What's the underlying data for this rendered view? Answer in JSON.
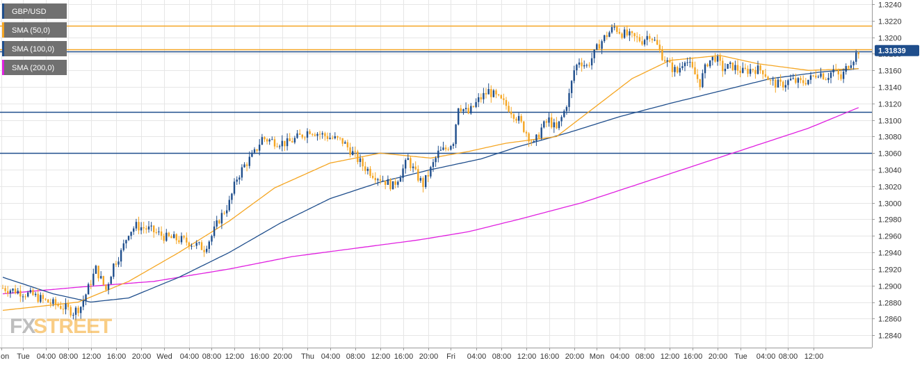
{
  "chart_data": {
    "type": "candlestick",
    "symbol": "GBP/USD",
    "y_range": [
      1.2825,
      1.3245
    ],
    "grid": true,
    "y_ticks": [
      1.284,
      1.286,
      1.288,
      1.29,
      1.292,
      1.294,
      1.296,
      1.298,
      1.3,
      1.302,
      1.304,
      1.306,
      1.308,
      1.31,
      1.312,
      1.314,
      1.316,
      1.318,
      1.32,
      1.322,
      1.324
    ],
    "x_ticks": [
      "Mon",
      "Tue",
      "04:00",
      "08:00",
      "12:00",
      "16:00",
      "20:00",
      "Wed",
      "04:00",
      "08:00",
      "12:00",
      "16:00",
      "20:00",
      "Thu",
      "04:00",
      "08:00",
      "12:00",
      "16:00",
      "20:00",
      "Fri",
      "04:00",
      "08:00",
      "12:00",
      "16:00",
      "20:00",
      "Mon",
      "04:00",
      "08:00",
      "12:00",
      "16:00",
      "20:00",
      "Tue",
      "04:00",
      "08:00",
      "12:00"
    ],
    "bar_interval": "1h",
    "last_price": "1.31839",
    "legend": [
      {
        "label": "GBP/USD",
        "color": "#1f4e8c"
      },
      {
        "label": "SMA (50,0)",
        "color": "#f5a623"
      },
      {
        "label": "SMA (100,0)",
        "color": "#1f4e8c"
      },
      {
        "label": "SMA (200,0)",
        "color": "#e020e0"
      }
    ],
    "horizontal_levels": [
      {
        "price": 1.3214,
        "color": "#f5a623"
      },
      {
        "price": 1.3185,
        "color": "#f5a623"
      },
      {
        "price": 1.3183,
        "color": "#1f4e8c"
      },
      {
        "price": 1.311,
        "color": "#1f4e8c"
      },
      {
        "price": 1.306,
        "color": "#1f4e8c"
      }
    ],
    "price_path": [
      [
        0,
        1.2897
      ],
      [
        6,
        1.2893
      ],
      [
        12,
        1.2888
      ],
      [
        18,
        1.288
      ],
      [
        24,
        1.2874
      ],
      [
        28,
        1.2868
      ],
      [
        31,
        1.2875
      ],
      [
        34,
        1.2897
      ],
      [
        37,
        1.292
      ],
      [
        41,
        1.2895
      ],
      [
        44,
        1.2925
      ],
      [
        47,
        1.294
      ],
      [
        50,
        1.2965
      ],
      [
        53,
        1.2972
      ],
      [
        58,
        1.2968
      ],
      [
        65,
        1.2958
      ],
      [
        71,
        1.2955
      ],
      [
        76,
        1.295
      ],
      [
        80,
        1.2945
      ],
      [
        83,
        1.296
      ],
      [
        86,
        1.298
      ],
      [
        90,
        1.3
      ],
      [
        93,
        1.303
      ],
      [
        96,
        1.3045
      ],
      [
        100,
        1.306
      ],
      [
        103,
        1.3078
      ],
      [
        108,
        1.3074
      ],
      [
        113,
        1.3072
      ],
      [
        118,
        1.308
      ],
      [
        122,
        1.3088
      ],
      [
        126,
        1.3083
      ],
      [
        131,
        1.3078
      ],
      [
        135,
        1.3074
      ],
      [
        139,
        1.306
      ],
      [
        143,
        1.3045
      ],
      [
        147,
        1.3035
      ],
      [
        151,
        1.3028
      ],
      [
        155,
        1.302
      ],
      [
        158,
        1.3035
      ],
      [
        161,
        1.3052
      ],
      [
        164,
        1.3035
      ],
      [
        167,
        1.3022
      ],
      [
        170,
        1.304
      ],
      [
        173,
        1.306
      ],
      [
        176,
        1.3065
      ],
      [
        179,
        1.3075
      ],
      [
        181,
        1.3118
      ],
      [
        185,
        1.3108
      ],
      [
        189,
        1.3124
      ],
      [
        193,
        1.3135
      ],
      [
        197,
        1.3125
      ],
      [
        201,
        1.3115
      ],
      [
        205,
        1.31
      ],
      [
        208,
        1.3085
      ],
      [
        211,
        1.307
      ],
      [
        214,
        1.309
      ],
      [
        217,
        1.31
      ],
      [
        220,
        1.3088
      ],
      [
        223,
        1.311
      ],
      [
        225,
        1.313
      ],
      [
        227,
        1.316
      ],
      [
        229,
        1.3172
      ],
      [
        232,
        1.3165
      ],
      [
        235,
        1.318
      ],
      [
        237,
        1.3192
      ],
      [
        240,
        1.3203
      ],
      [
        243,
        1.3212
      ],
      [
        246,
        1.3205
      ],
      [
        250,
        1.32
      ],
      [
        254,
        1.3196
      ],
      [
        257,
        1.3204
      ],
      [
        259,
        1.3195
      ],
      [
        262,
        1.3178
      ],
      [
        265,
        1.3165
      ],
      [
        268,
        1.3158
      ],
      [
        271,
        1.3175
      ],
      [
        274,
        1.316
      ],
      [
        277,
        1.3145
      ],
      [
        280,
        1.317
      ],
      [
        283,
        1.3176
      ],
      [
        286,
        1.3162
      ],
      [
        290,
        1.3165
      ],
      [
        294,
        1.3158
      ],
      [
        298,
        1.3162
      ],
      [
        302,
        1.316
      ],
      [
        305,
        1.3146
      ],
      [
        309,
        1.3142
      ],
      [
        313,
        1.3148
      ],
      [
        317,
        1.3145
      ],
      [
        321,
        1.315
      ],
      [
        324,
        1.3158
      ],
      [
        327,
        1.3152
      ],
      [
        330,
        1.316
      ],
      [
        333,
        1.315
      ],
      [
        336,
        1.3168
      ],
      [
        338,
        1.3175
      ],
      [
        340,
        1.3184
      ]
    ],
    "sma50": [
      [
        0,
        1.287
      ],
      [
        30,
        1.288
      ],
      [
        50,
        1.2905
      ],
      [
        70,
        1.294
      ],
      [
        90,
        1.2978
      ],
      [
        108,
        1.3018
      ],
      [
        130,
        1.3048
      ],
      [
        150,
        1.306
      ],
      [
        170,
        1.3054
      ],
      [
        185,
        1.3062
      ],
      [
        200,
        1.3072
      ],
      [
        220,
        1.308
      ],
      [
        235,
        1.3115
      ],
      [
        250,
        1.315
      ],
      [
        265,
        1.3172
      ],
      [
        285,
        1.3178
      ],
      [
        300,
        1.3168
      ],
      [
        320,
        1.316
      ],
      [
        340,
        1.3162
      ]
    ],
    "sma100": [
      [
        0,
        1.291
      ],
      [
        20,
        1.289
      ],
      [
        35,
        1.288
      ],
      [
        50,
        1.2885
      ],
      [
        70,
        1.291
      ],
      [
        90,
        1.294
      ],
      [
        110,
        1.2975
      ],
      [
        130,
        1.3005
      ],
      [
        150,
        1.3025
      ],
      [
        170,
        1.304
      ],
      [
        190,
        1.3053
      ],
      [
        205,
        1.3068
      ],
      [
        225,
        1.3085
      ],
      [
        245,
        1.3104
      ],
      [
        265,
        1.312
      ],
      [
        285,
        1.3135
      ],
      [
        305,
        1.315
      ],
      [
        325,
        1.3158
      ],
      [
        340,
        1.3162
      ]
    ],
    "sma200": [
      [
        0,
        1.289
      ],
      [
        30,
        1.2898
      ],
      [
        60,
        1.2905
      ],
      [
        90,
        1.292
      ],
      [
        115,
        1.2935
      ],
      [
        140,
        1.2945
      ],
      [
        165,
        1.2955
      ],
      [
        185,
        1.2965
      ],
      [
        205,
        1.298
      ],
      [
        230,
        1.3
      ],
      [
        255,
        1.3025
      ],
      [
        280,
        1.305
      ],
      [
        300,
        1.307
      ],
      [
        320,
        1.309
      ],
      [
        340,
        1.3115
      ]
    ]
  },
  "watermark": {
    "part1": "FX",
    "part2": "STREET"
  }
}
